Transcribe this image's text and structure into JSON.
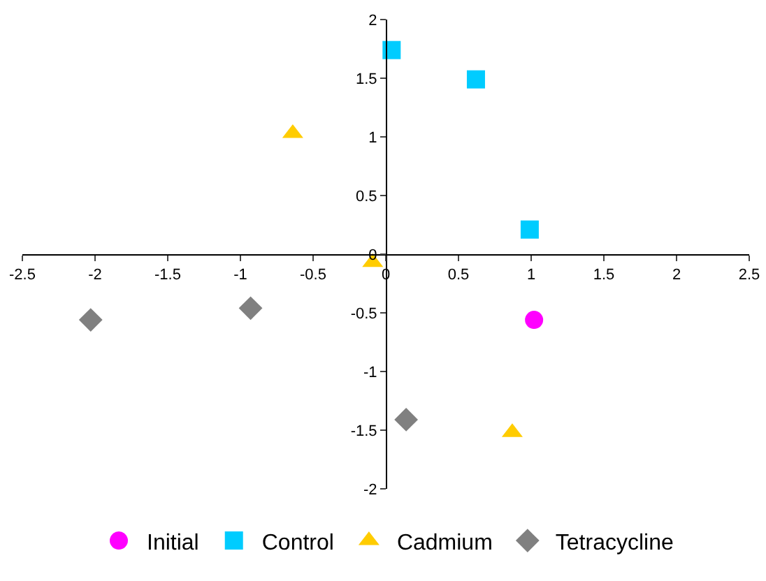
{
  "chart_data": {
    "type": "scatter",
    "series": [
      {
        "name": "Initial",
        "color": "#ff00ff",
        "marker": "circle",
        "x": [
          1.02
        ],
        "values": [
          -0.56
        ]
      },
      {
        "name": "Control",
        "color": "#00ccff",
        "marker": "square",
        "x": [
          0.04,
          0.62,
          0.99
        ],
        "values": [
          1.74,
          1.49,
          0.21
        ]
      },
      {
        "name": "Cadmium",
        "color": "#ffcc00",
        "marker": "triangle",
        "x": [
          -0.64,
          -0.09,
          0.87
        ],
        "values": [
          1.03,
          -0.07,
          -1.52
        ]
      },
      {
        "name": "Tetracycline",
        "color": "#808080",
        "marker": "diamond",
        "x": [
          -2.03,
          -0.93,
          0.14
        ],
        "values": [
          -0.56,
          -0.46,
          -1.41
        ]
      }
    ],
    "xlim": [
      -2.5,
      2.5
    ],
    "xticks": [
      -2.5,
      -2,
      -1.5,
      -1,
      -0.5,
      0,
      0.5,
      1,
      1.5,
      2,
      2.5
    ],
    "ylim": [
      -2,
      2
    ],
    "yticks": [
      -2,
      -1.5,
      -1,
      -0.5,
      0,
      0.5,
      1,
      1.5,
      2
    ],
    "grid": false,
    "legend": "bottom"
  }
}
